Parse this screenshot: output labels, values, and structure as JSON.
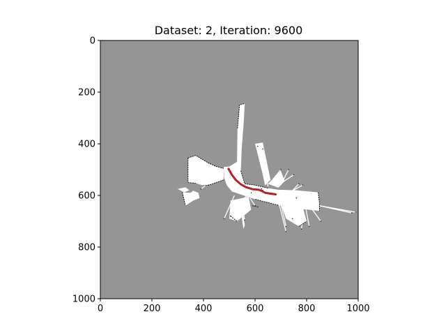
{
  "chart_data": {
    "type": "heatmap",
    "title": "Dataset: 2, Iteration: 9600",
    "xlabel": "",
    "ylabel": "",
    "xlim": [
      0,
      1000
    ],
    "ylim": [
      1000,
      0
    ],
    "xticks": [
      0,
      200,
      400,
      600,
      800,
      1000
    ],
    "yticks": [
      0,
      200,
      400,
      600,
      800,
      1000
    ],
    "grid": false,
    "colors": {
      "unknown": "#959595",
      "free": "#ffffff",
      "occupied": "#000000",
      "trajectory": "#b22222"
    },
    "free_regions": [
      [
        [
          340,
          455
        ],
        [
          370,
          445
        ],
        [
          395,
          460
        ],
        [
          420,
          475
        ],
        [
          450,
          488
        ],
        [
          478,
          495
        ],
        [
          478,
          540
        ],
        [
          420,
          560
        ],
        [
          400,
          562
        ],
        [
          370,
          553
        ],
        [
          340,
          550
        ]
      ],
      [
        [
          478,
          490
        ],
        [
          500,
          488
        ],
        [
          530,
          470
        ],
        [
          532,
          340
        ],
        [
          540,
          248
        ],
        [
          560,
          245
        ],
        [
          555,
          330
        ],
        [
          548,
          420
        ],
        [
          545,
          505
        ],
        [
          560,
          555
        ],
        [
          600,
          560
        ],
        [
          650,
          572
        ],
        [
          690,
          578
        ],
        [
          760,
          580
        ],
        [
          845,
          588
        ],
        [
          850,
          630
        ],
        [
          850,
          660
        ],
        [
          760,
          650
        ],
        [
          690,
          638
        ],
        [
          600,
          615
        ],
        [
          540,
          595
        ],
        [
          510,
          585
        ],
        [
          490,
          560
        ],
        [
          480,
          530
        ]
      ],
      [
        [
          318,
          588
        ],
        [
          350,
          590
        ],
        [
          360,
          582
        ],
        [
          380,
          590
        ],
        [
          385,
          610
        ],
        [
          360,
          620
        ],
        [
          330,
          640
        ]
      ],
      [
        [
          300,
          575
        ],
        [
          330,
          568
        ],
        [
          345,
          580
        ],
        [
          325,
          588
        ]
      ]
    ],
    "rays": [
      [
        [
          545,
          620
        ],
        [
          560,
          695
        ]
      ],
      [
        [
          545,
          620
        ],
        [
          505,
          680
        ]
      ],
      [
        [
          545,
          620
        ],
        [
          585,
          590
        ]
      ],
      [
        [
          560,
          615
        ],
        [
          625,
          575
        ]
      ],
      [
        [
          565,
          600
        ],
        [
          655,
          595
        ]
      ],
      [
        [
          590,
          600
        ],
        [
          630,
          580
        ]
      ],
      [
        [
          690,
          620
        ],
        [
          745,
          690
        ]
      ],
      [
        [
          690,
          620
        ],
        [
          720,
          740
        ]
      ],
      [
        [
          700,
          625
        ],
        [
          760,
          610
        ]
      ],
      [
        [
          790,
          615
        ],
        [
          810,
          720
        ]
      ],
      [
        [
          790,
          615
        ],
        [
          780,
          730
        ]
      ],
      [
        [
          790,
          610
        ],
        [
          855,
          700
        ]
      ],
      [
        [
          850,
          640
        ],
        [
          975,
          668
        ]
      ],
      [
        [
          850,
          640
        ],
        [
          990,
          665
        ]
      ],
      [
        [
          640,
          560
        ],
        [
          610,
          410
        ]
      ],
      [
        [
          650,
          565
        ],
        [
          630,
          420
        ]
      ],
      [
        [
          655,
          555
        ],
        [
          700,
          500
        ]
      ],
      [
        [
          700,
          560
        ],
        [
          730,
          500
        ]
      ],
      [
        [
          690,
          560
        ],
        [
          750,
          520
        ]
      ],
      [
        [
          745,
          582
        ],
        [
          770,
          555
        ]
      ],
      [
        [
          745,
          582
        ],
        [
          785,
          560
        ]
      ],
      [
        [
          470,
          505
        ],
        [
          420,
          560
        ]
      ],
      [
        [
          470,
          515
        ],
        [
          390,
          575
        ]
      ],
      [
        [
          520,
          600
        ],
        [
          480,
          690
        ]
      ],
      [
        [
          580,
          610
        ],
        [
          600,
          640
        ]
      ],
      [
        [
          700,
          630
        ],
        [
          720,
          720
        ]
      ]
    ],
    "free_wedges": [
      [
        [
          505,
          620
        ],
        [
          575,
          605
        ],
        [
          585,
          655
        ],
        [
          530,
          700
        ],
        [
          500,
          690
        ]
      ],
      [
        [
          695,
          615
        ],
        [
          780,
          625
        ],
        [
          800,
          700
        ],
        [
          770,
          720
        ],
        [
          720,
          690
        ]
      ],
      [
        [
          600,
          400
        ],
        [
          630,
          395
        ],
        [
          660,
          540
        ],
        [
          640,
          560
        ]
      ],
      [
        [
          650,
          555
        ],
        [
          700,
          505
        ],
        [
          715,
          545
        ],
        [
          690,
          570
        ]
      ],
      [
        [
          545,
          610
        ],
        [
          560,
          715
        ],
        [
          555,
          730
        ],
        [
          540,
          630
        ]
      ]
    ],
    "walls": [
      [
        [
          340,
          455
        ],
        [
          370,
          445
        ],
        [
          395,
          460
        ],
        [
          420,
          475
        ],
        [
          450,
          488
        ],
        [
          478,
          495
        ]
      ],
      [
        [
          340,
          455
        ],
        [
          340,
          550
        ],
        [
          370,
          553
        ]
      ],
      [
        [
          532,
          340
        ],
        [
          540,
          248
        ],
        [
          560,
          245
        ]
      ],
      [
        [
          545,
          505
        ],
        [
          560,
          555
        ],
        [
          600,
          560
        ],
        [
          650,
          572
        ]
      ],
      [
        [
          845,
          588
        ],
        [
          850,
          630
        ],
        [
          850,
          660
        ]
      ],
      [
        [
          690,
          638
        ],
        [
          600,
          615
        ]
      ],
      [
        [
          478,
          540
        ],
        [
          420,
          560
        ],
        [
          400,
          562
        ]
      ],
      [
        [
          505,
          680
        ],
        [
          530,
          700
        ]
      ],
      [
        [
          770,
          720
        ],
        [
          800,
          700
        ]
      ],
      [
        [
          318,
          588
        ],
        [
          330,
          640
        ]
      ],
      [
        [
          590,
          640
        ],
        [
          615,
          645
        ]
      ]
    ],
    "trajectory": {
      "x": [
        497,
        510,
        525,
        545,
        565,
        590,
        615,
        630,
        640,
        660,
        680
      ],
      "y": [
        497,
        520,
        540,
        557,
        568,
        576,
        578,
        585,
        590,
        593,
        596
      ]
    }
  }
}
